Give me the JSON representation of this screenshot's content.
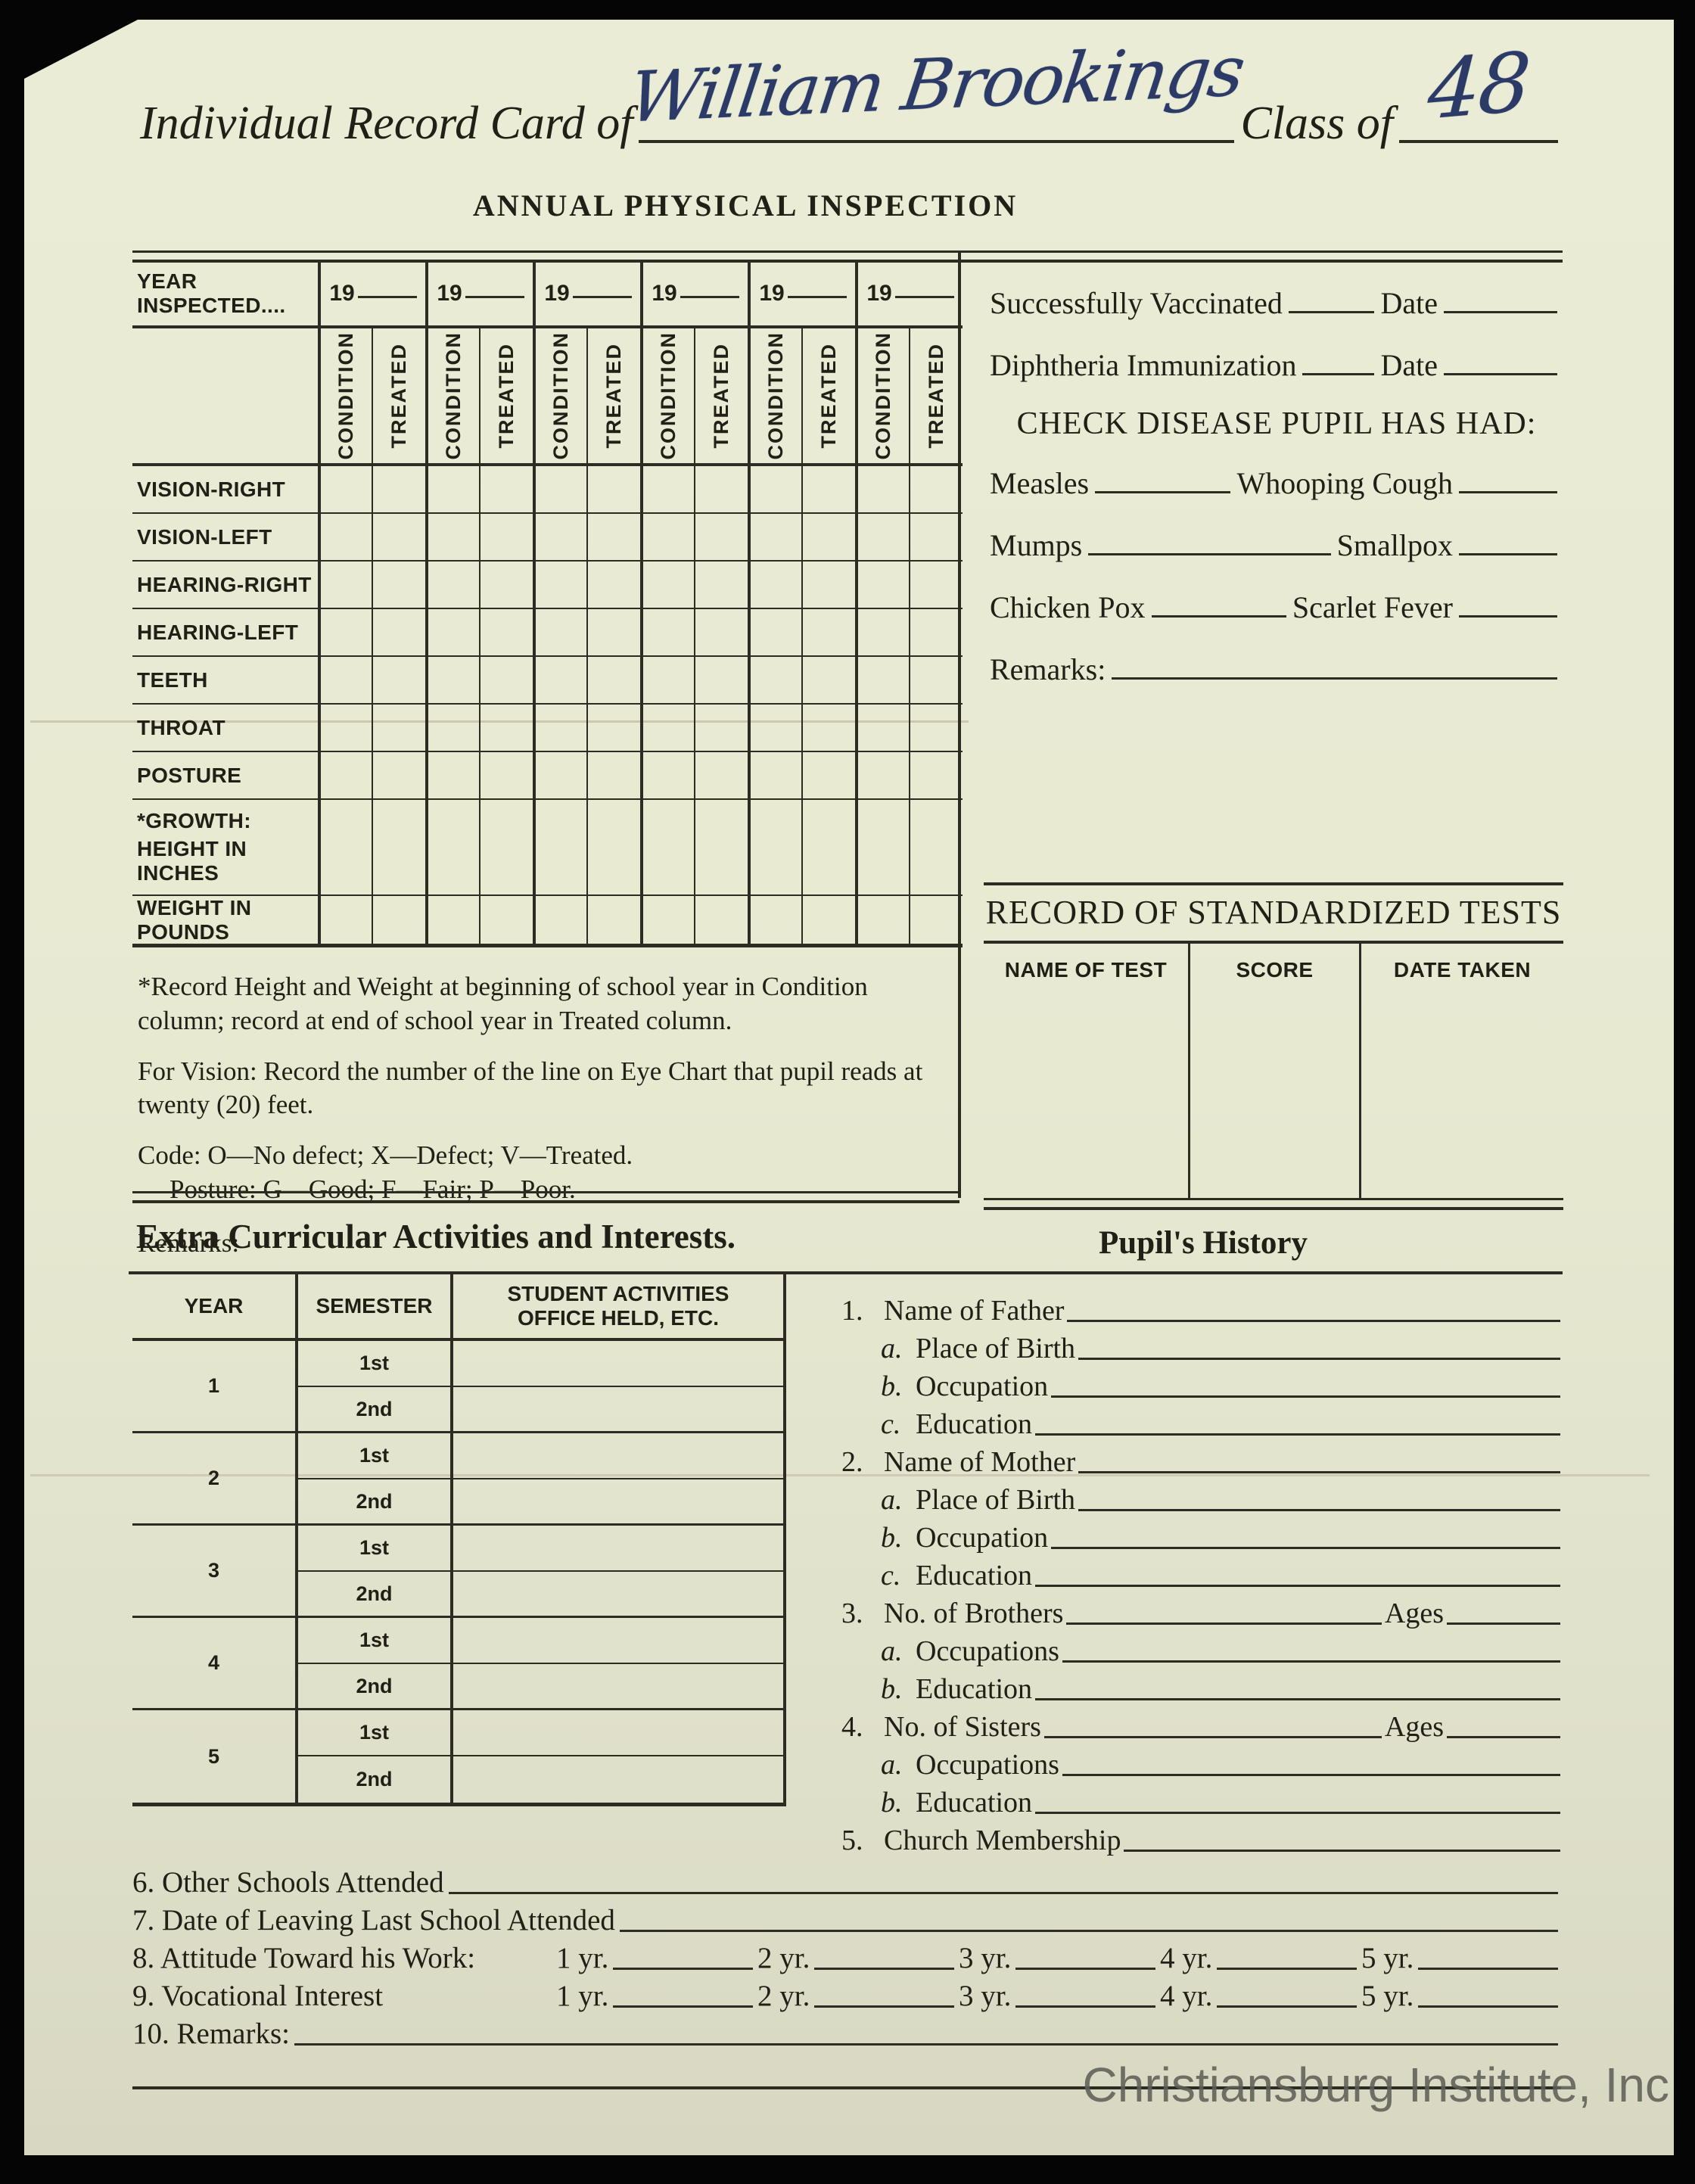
{
  "header": {
    "title_prefix": "Individual Record Card of",
    "student_name": "William Brookings",
    "class_of_label": "Class of",
    "class_year": "48",
    "form_title": "ANNUAL PHYSICAL INSPECTION"
  },
  "inspection": {
    "year_inspected_label": "YEAR INSPECTED....",
    "year_placeholder": "19",
    "year_count": 6,
    "subheaders": [
      "CONDITION",
      "TREATED"
    ],
    "row_labels": [
      "VISION-RIGHT",
      "VISION-LEFT",
      "HEARING-RIGHT",
      "HEARING-LEFT",
      "TEETH",
      "THROAT",
      "POSTURE"
    ],
    "growth_label": "*GROWTH:",
    "height_label": "HEIGHT IN INCHES",
    "weight_label": "WEIGHT IN POUNDS"
  },
  "immunization": {
    "vaccinated_label": "Successfully Vaccinated",
    "vaccinated_date_label": "Date",
    "diphtheria_label": "Diphtheria Immunization",
    "diphtheria_date_label": "Date",
    "diseases_heading": "CHECK DISEASE PUPIL HAS HAD:",
    "disease_rows": [
      {
        "left": "Measles",
        "right": "Whooping Cough"
      },
      {
        "left": "Mumps",
        "right": "Smallpox"
      },
      {
        "left": "Chicken Pox",
        "right": "Scarlet Fever"
      }
    ],
    "remarks_label": "Remarks:"
  },
  "standardized_tests": {
    "heading": "RECORD OF STANDARDIZED TESTS",
    "columns": [
      "NAME OF TEST",
      "SCORE",
      "DATE TAKEN"
    ]
  },
  "footnotes": {
    "growth_note": "*Record Height and Weight at beginning of school year in Condition column; record at end of school year in Treated column.",
    "vision_note": "For Vision: Record the number of the line on Eye Chart that pupil reads at twenty (20) feet.",
    "code_note": "Code: O—No defect; X—Defect; V—Treated.",
    "posture_note": "Posture: G—Good; F—Fair; P—Poor.",
    "remarks_label": "Remarks:"
  },
  "activities": {
    "heading": "Extra Curricular Activities and Interests.",
    "col_year": "YEAR",
    "col_semester": "SEMESTER",
    "col_activities_line1": "STUDENT ACTIVITIES",
    "col_activities_line2": "OFFICE HELD, ETC.",
    "years": [
      "1",
      "2",
      "3",
      "4",
      "5"
    ],
    "semesters": [
      "1st",
      "2nd"
    ]
  },
  "pupils_history": {
    "heading": "Pupil's History",
    "ages_label": "Ages",
    "items": [
      {
        "num": "1.",
        "label": "Name of Father",
        "has_ages": false,
        "subs": [
          [
            "a.",
            "Place of Birth"
          ],
          [
            "b.",
            "Occupation"
          ],
          [
            "c.",
            "Education"
          ]
        ]
      },
      {
        "num": "2.",
        "label": "Name of Mother",
        "has_ages": false,
        "subs": [
          [
            "a.",
            "Place of Birth"
          ],
          [
            "b.",
            "Occupation"
          ],
          [
            "c.",
            "Education"
          ]
        ]
      },
      {
        "num": "3.",
        "label": "No. of Brothers",
        "has_ages": true,
        "subs": [
          [
            "a.",
            "Occupations"
          ],
          [
            "b.",
            "Education"
          ]
        ]
      },
      {
        "num": "4.",
        "label": "No. of Sisters",
        "has_ages": true,
        "subs": [
          [
            "a.",
            "Occupations"
          ],
          [
            "b.",
            "Education"
          ]
        ]
      },
      {
        "num": "5.",
        "label": "Church Membership",
        "has_ages": false,
        "subs": []
      }
    ]
  },
  "bottom_items": {
    "item6": "6. Other Schools Attended",
    "item7": "7. Date of Leaving Last School Attended",
    "item8": "8. Attitude Toward his Work:",
    "item9": "9. Vocational Interest",
    "year_labels": [
      "1 yr.",
      "2 yr.",
      "3 yr.",
      "4 yr.",
      "5 yr."
    ],
    "item10": "10. Remarks:"
  },
  "watermark": "Christiansburg Institute, Inc"
}
